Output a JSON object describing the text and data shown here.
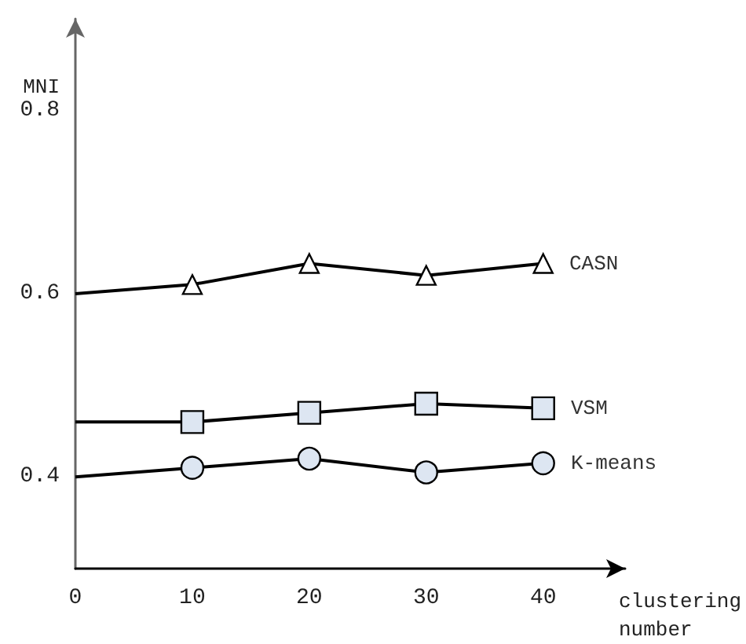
{
  "chart_data": {
    "type": "line",
    "ylabel": "MNI",
    "xlabel": "clustering\nnumber",
    "x": [
      0,
      10,
      20,
      30,
      40
    ],
    "xlim": [
      0,
      47
    ],
    "xticks": [
      0,
      10,
      20,
      30,
      40
    ],
    "ylim": [
      0.3,
      0.9
    ],
    "yticks": [
      0.4,
      0.6,
      0.8
    ],
    "grid": false,
    "legend": false,
    "line_style": "solid",
    "series": [
      {
        "name": "CASN",
        "color": "#000000",
        "marker": "triangle",
        "values": [
          0.6,
          0.61,
          0.633,
          0.62,
          0.633
        ]
      },
      {
        "name": "VSM",
        "color": "#000000",
        "marker": "square",
        "values": [
          0.46,
          0.46,
          0.47,
          0.48,
          0.475
        ]
      },
      {
        "name": "K-means",
        "color": "#000000",
        "marker": "circle",
        "values": [
          0.4,
          0.41,
          0.42,
          0.405,
          0.415
        ]
      }
    ]
  }
}
